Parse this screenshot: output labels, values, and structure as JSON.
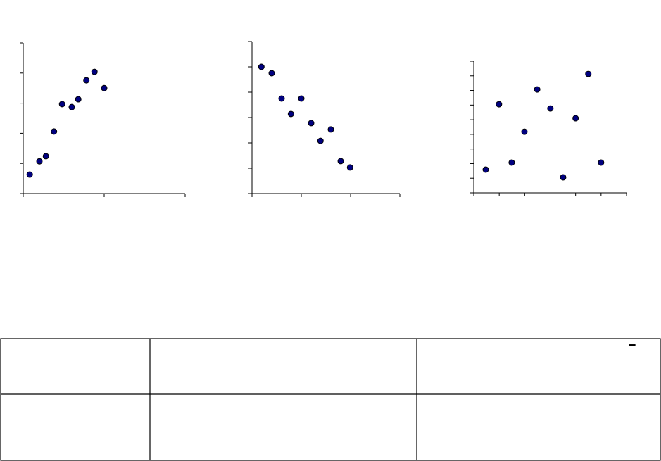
{
  "chart_data": [
    {
      "type": "scatter",
      "color": "#000080",
      "x": [
        0.4,
        1.0,
        1.4,
        1.9,
        2.4,
        3.0,
        3.4,
        3.9,
        4.4,
        5.0
      ],
      "values": [
        6.3,
        10.7,
        12.4,
        20.6,
        29.7,
        28.7,
        31.3,
        37.6,
        40.4,
        35.0
      ],
      "xlim": [
        0,
        10
      ],
      "xticks": [
        0,
        5,
        10
      ],
      "ylim": [
        0,
        50
      ],
      "yticks": [
        0,
        10,
        20,
        30,
        40,
        50
      ]
    },
    {
      "type": "scatter",
      "color": "#000080",
      "x": [
        0.19,
        0.4,
        0.6,
        0.79,
        1.0,
        1.2,
        1.39,
        1.6,
        1.8,
        1.99
      ],
      "values": [
        50,
        47.5,
        37.5,
        31.4,
        37.5,
        27.8,
        20.8,
        25.3,
        12.8,
        10.3
      ],
      "xlim": [
        0,
        3
      ],
      "xticks": [
        0,
        1,
        2,
        3
      ],
      "ylim": [
        0,
        60
      ],
      "yticks": [
        0,
        10,
        20,
        30,
        40,
        50,
        60
      ]
    },
    {
      "type": "scatter",
      "color": "#000080",
      "x": [
        0.47,
        0.99,
        1.49,
        1.99,
        2.49,
        3.01,
        3.51,
        4.0,
        4.5,
        5.0
      ],
      "values": [
        1.59,
        6.06,
        2.07,
        4.18,
        7.07,
        5.77,
        1.06,
        5.1,
        8.13,
        2.07
      ],
      "xlim": [
        0,
        6
      ],
      "xticks": [
        0,
        1,
        2,
        3,
        4,
        5,
        6
      ],
      "ylim": [
        0,
        9
      ],
      "yticks": [
        0,
        1,
        2,
        3,
        4,
        5,
        6,
        7,
        8,
        9
      ]
    }
  ],
  "table": {
    "note": "−"
  }
}
